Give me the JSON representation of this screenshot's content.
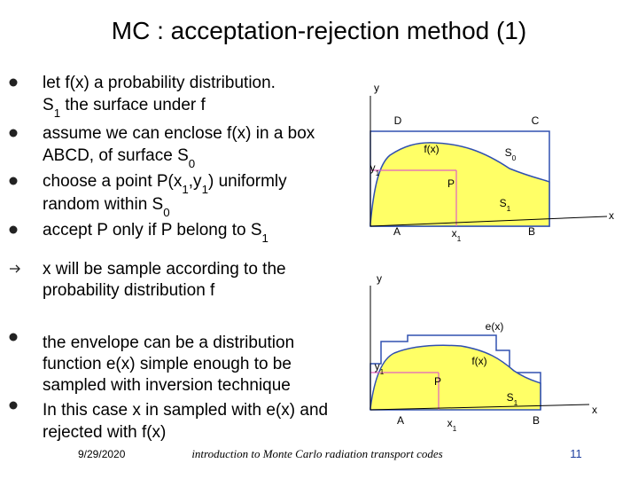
{
  "title": "MC : acceptation-rejection method (1)",
  "bullets": [
    {
      "lines": [
        [
          "let f(x) a probability distribution."
        ],
        [
          "S",
          {
            "sub": "1"
          },
          " the surface under f"
        ]
      ]
    },
    {
      "lines": [
        [
          "assume we can enclose f(x) in a box"
        ],
        [
          "ABCD, of surface ",
          "S",
          {
            "sub": "0"
          }
        ]
      ]
    },
    {
      "lines": [
        [
          "choose a point P(x",
          {
            "sub": "1"
          },
          ",y",
          {
            "sub": "1"
          },
          ") uniformly"
        ],
        [
          "random within S",
          {
            "sub": "0"
          }
        ]
      ]
    },
    {
      "lines": [
        [
          "accept P only if P belong to S",
          {
            "sub": "1"
          }
        ]
      ]
    },
    {
      "lines": [
        [
          "x will be sample according to the"
        ],
        [
          "probability distribution f"
        ]
      ]
    },
    {
      "lines": [
        [
          "the envelope can be a distribution"
        ],
        [
          "function e(x) simple enough to be"
        ],
        [
          "sampled with inversion technique"
        ]
      ]
    },
    {
      "lines": [
        [
          "In this case x in sampled with e(x) and"
        ],
        [
          "rejected with f(x)"
        ]
      ]
    }
  ],
  "diagrams": [
    {
      "labels": [
        [
          "y"
        ],
        [
          "D"
        ],
        [
          "C"
        ],
        [
          "f(x)"
        ],
        [
          "S",
          {
            "sub": "0"
          }
        ],
        [
          "y",
          {
            "sub": "1"
          }
        ],
        [
          "P"
        ],
        [
          "S",
          {
            "sub": "1"
          }
        ],
        [
          "A"
        ],
        [
          "x",
          {
            "sub": "1"
          }
        ],
        [
          "B"
        ],
        [
          "x"
        ]
      ]
    },
    {
      "labels": [
        [
          "y"
        ],
        [
          "e(x)"
        ],
        [
          "f(x)"
        ],
        [
          "y",
          {
            "sub": "1"
          }
        ],
        [
          "P"
        ],
        [
          "S",
          {
            "sub": "1"
          }
        ],
        [
          "A"
        ],
        [
          "x",
          {
            "sub": "1"
          }
        ],
        [
          "B"
        ],
        [
          "x"
        ]
      ]
    }
  ],
  "footer": {
    "date": "9/29/2020",
    "text": "introduction to Monte Carlo radiation transport codes",
    "page": "11"
  }
}
